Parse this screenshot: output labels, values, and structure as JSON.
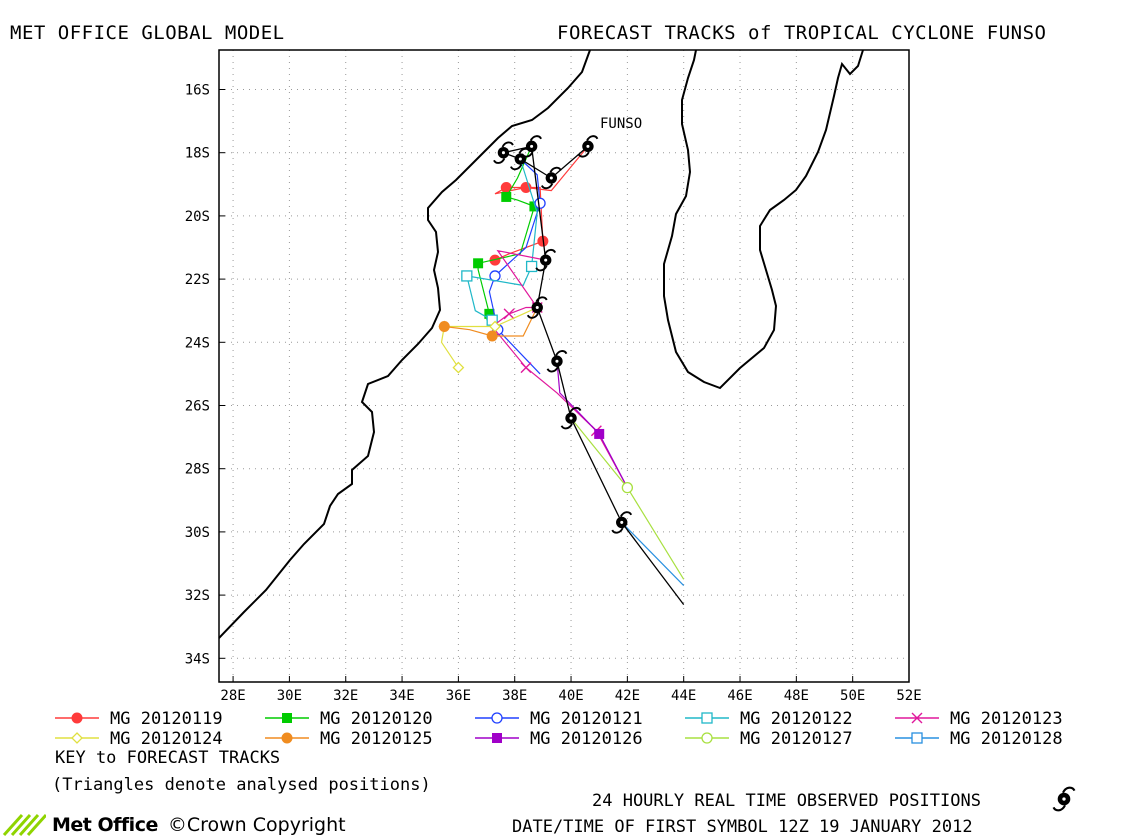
{
  "header": {
    "left": "MET OFFICE GLOBAL MODEL",
    "right": "FORECAST TRACKS of TROPICAL CYCLONE FUNSO"
  },
  "storm_name": "FUNSO",
  "axes": {
    "lat_labels": [
      "16S",
      "18S",
      "20S",
      "22S",
      "24S",
      "26S",
      "28S",
      "30S",
      "32S",
      "34S"
    ],
    "lon_labels": [
      "28E",
      "30E",
      "32E",
      "34E",
      "36E",
      "38E",
      "40E",
      "42E",
      "44E",
      "46E",
      "48E",
      "50E",
      "52E"
    ],
    "lon_range": [
      27.5,
      52.0
    ],
    "lat_range": [
      -34.75,
      -14.75
    ]
  },
  "legend": [
    {
      "label": "MG 20120119",
      "color": "#ff3b3b",
      "marker": "filled-circle"
    },
    {
      "label": "MG 20120120",
      "color": "#00cc00",
      "marker": "filled-square"
    },
    {
      "label": "MG 20120121",
      "color": "#2040ff",
      "marker": "open-circle"
    },
    {
      "label": "MG 20120122",
      "color": "#20b8c8",
      "marker": "open-square"
    },
    {
      "label": "MG 20120123",
      "color": "#e0189c",
      "marker": "cross"
    },
    {
      "label": "MG 20120124",
      "color": "#e0e040",
      "marker": "open-diamond"
    },
    {
      "label": "MG 20120125",
      "color": "#f08c20",
      "marker": "filled-circle"
    },
    {
      "label": "MG 20120126",
      "color": "#a000c8",
      "marker": "filled-square"
    },
    {
      "label": "MG 20120127",
      "color": "#a8e040",
      "marker": "open-circle"
    },
    {
      "label": "MG 20120128",
      "color": "#2890e0",
      "marker": "open-square"
    }
  ],
  "notes": {
    "key": "KEY to FORECAST TRACKS",
    "triangles": "(Triangles denote analysed positions)",
    "observed": "24 HOURLY REAL TIME OBSERVED POSITIONS",
    "datetime": "DATE/TIME OF FIRST SYMBOL 12Z 19 JANUARY 2012"
  },
  "branding": {
    "logo": "Met Office",
    "copyright": "©Crown Copyright"
  },
  "observed_track": [
    [
      40.6,
      -17.8
    ],
    [
      39.3,
      -18.8
    ],
    [
      38.2,
      -18.2
    ],
    [
      37.6,
      -18.0
    ],
    [
      38.6,
      -17.8
    ],
    [
      39.1,
      -21.4
    ],
    [
      38.8,
      -22.9
    ],
    [
      39.5,
      -24.6
    ],
    [
      40.0,
      -26.4
    ],
    [
      41.8,
      -29.7
    ],
    [
      44.0,
      -32.3
    ]
  ],
  "forecast_tracks": [
    {
      "series": 0,
      "points": [
        [
          40.6,
          -17.8
        ],
        [
          39.3,
          -19.2
        ],
        [
          38.4,
          -19.1
        ],
        [
          37.3,
          -19.3
        ],
        [
          37.7,
          -19.1
        ],
        [
          38.9,
          -19.1
        ],
        [
          39.0,
          -20.8
        ],
        [
          37.8,
          -21.2
        ],
        [
          37.3,
          -21.4
        ]
      ]
    },
    {
      "series": 1,
      "points": [
        [
          38.6,
          -17.8
        ],
        [
          38.1,
          -18.8
        ],
        [
          37.7,
          -19.4
        ],
        [
          38.1,
          -19.5
        ],
        [
          38.7,
          -19.7
        ],
        [
          38.2,
          -21.2
        ],
        [
          36.7,
          -21.5
        ],
        [
          36.7,
          -21.7
        ],
        [
          37.1,
          -23.1
        ],
        [
          37.0,
          -23.3
        ]
      ]
    },
    {
      "series": 2,
      "points": [
        [
          38.2,
          -18.2
        ],
        [
          38.8,
          -18.7
        ],
        [
          38.9,
          -19.6
        ],
        [
          38.4,
          -21.0
        ],
        [
          37.3,
          -21.9
        ],
        [
          37.1,
          -22.4
        ],
        [
          37.4,
          -23.6
        ],
        [
          38.9,
          -25.0
        ]
      ]
    },
    {
      "series": 3,
      "points": [
        [
          38.2,
          -18.2
        ],
        [
          38.8,
          -19.9
        ],
        [
          38.6,
          -21.6
        ],
        [
          38.3,
          -22.2
        ],
        [
          36.3,
          -21.9
        ],
        [
          36.6,
          -23.0
        ],
        [
          37.2,
          -23.3
        ]
      ]
    },
    {
      "series": 4,
      "points": [
        [
          39.1,
          -21.4
        ],
        [
          37.4,
          -21.1
        ],
        [
          38.8,
          -22.9
        ],
        [
          38.4,
          -22.9
        ],
        [
          37.8,
          -23.1
        ],
        [
          37.2,
          -23.5
        ],
        [
          38.4,
          -24.8
        ],
        [
          39.5,
          -25.6
        ],
        [
          40.9,
          -26.8
        ],
        [
          42.0,
          -28.6
        ]
      ]
    },
    {
      "series": 5,
      "points": [
        [
          38.8,
          -22.9
        ],
        [
          38.3,
          -23.1
        ],
        [
          37.3,
          -23.5
        ],
        [
          36.6,
          -23.5
        ],
        [
          35.5,
          -23.5
        ],
        [
          35.4,
          -24.0
        ],
        [
          36.0,
          -24.8
        ]
      ]
    },
    {
      "series": 6,
      "points": [
        [
          38.8,
          -22.9
        ],
        [
          38.3,
          -23.8
        ],
        [
          37.2,
          -23.8
        ],
        [
          36.4,
          -23.6
        ],
        [
          35.5,
          -23.5
        ]
      ]
    },
    {
      "series": 7,
      "points": [
        [
          39.5,
          -24.6
        ],
        [
          39.6,
          -25.6
        ],
        [
          41.0,
          -26.9
        ],
        [
          42.0,
          -28.6
        ]
      ]
    },
    {
      "series": 8,
      "points": [
        [
          40.0,
          -26.4
        ],
        [
          40.0,
          -26.4
        ],
        [
          42.0,
          -28.6
        ],
        [
          44.0,
          -31.5
        ]
      ]
    },
    {
      "series": 9,
      "points": [
        [
          41.8,
          -29.7
        ],
        [
          44.0,
          -31.7
        ]
      ]
    }
  ],
  "colors": {
    "coast": "#000000",
    "grid": "#888888",
    "logo_green": "#8fd400"
  }
}
